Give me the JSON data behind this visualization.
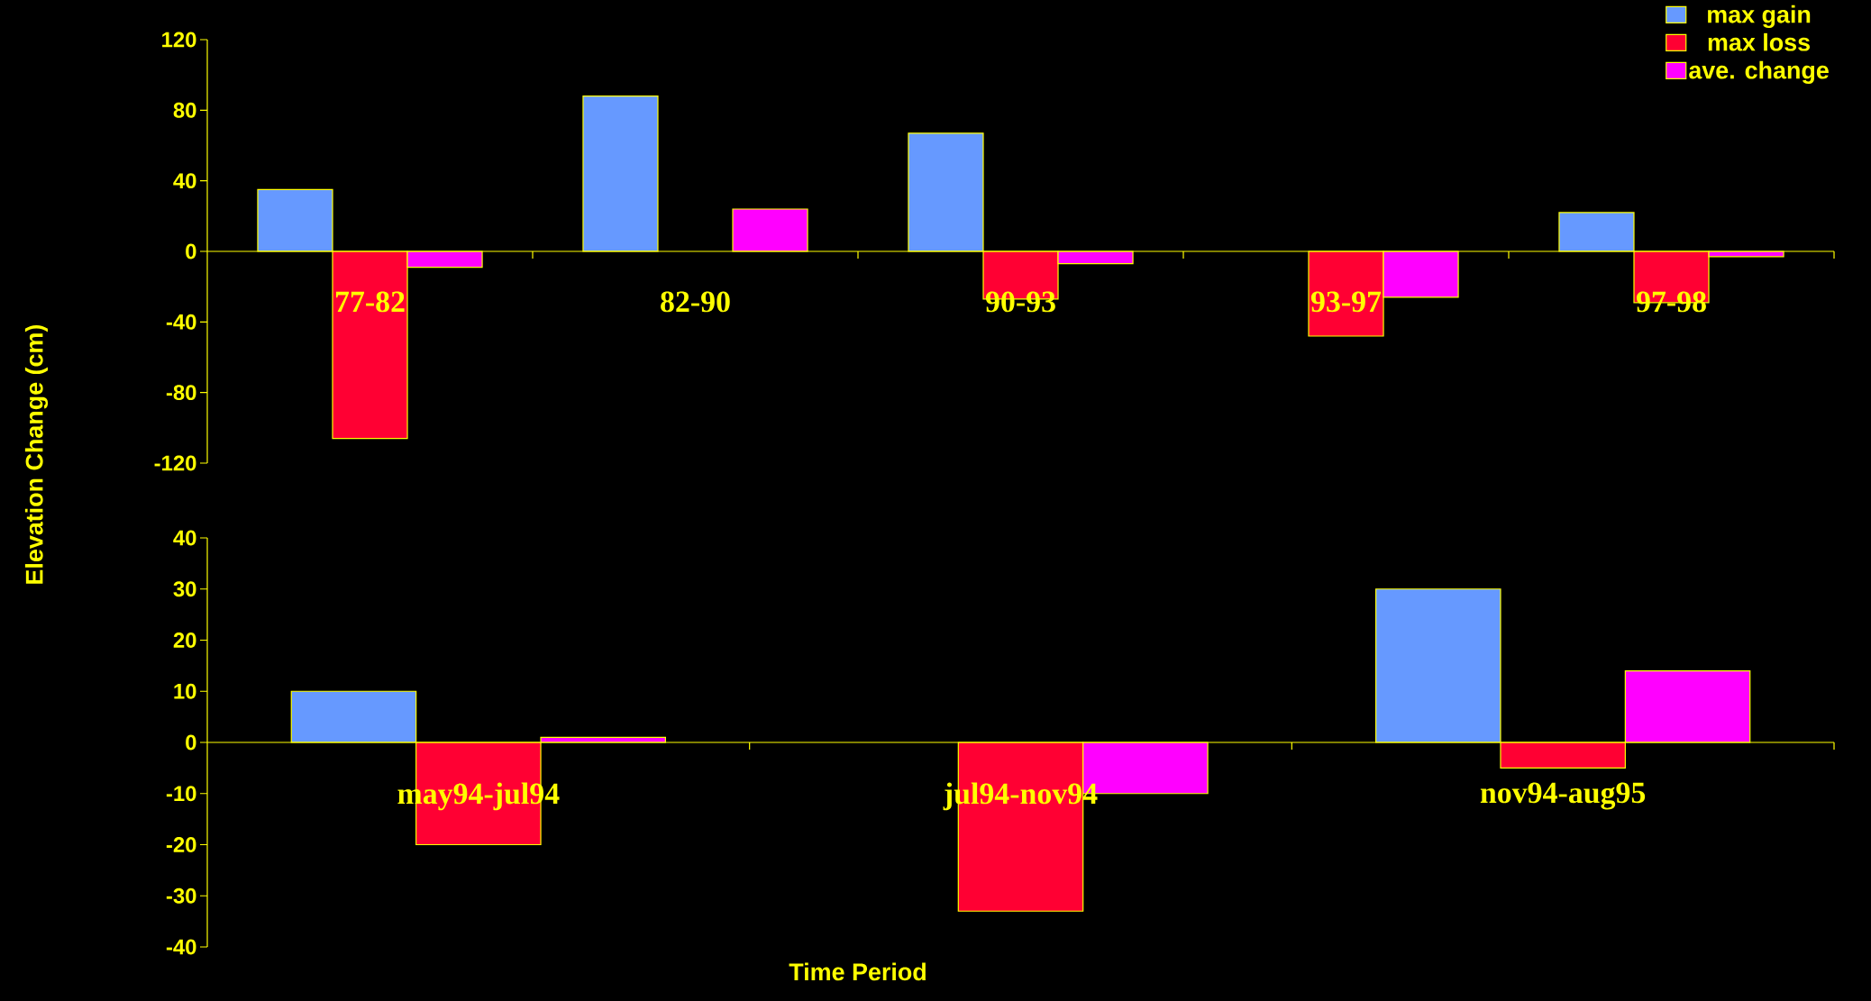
{
  "chart_data": [
    {
      "type": "bar",
      "ylabel": "Elevation Change (cm)",
      "categories": [
        "77-82",
        "82-90",
        "90-93",
        "93-97",
        "97-98"
      ],
      "series": [
        {
          "name": "max gain",
          "color": "#6699ff",
          "values": [
            35,
            88,
            67,
            null,
            22
          ]
        },
        {
          "name": "max loss",
          "color": "#ff0033",
          "values": [
            -106,
            null,
            -27,
            -48,
            -29
          ]
        },
        {
          "name": "ave. change",
          "color": "#ff00ff",
          "values": [
            -9,
            24,
            -7,
            -26,
            -3
          ]
        }
      ],
      "ylim": [
        -120,
        120
      ],
      "yticks": [
        -120,
        -80,
        -40,
        0,
        40,
        80,
        120
      ],
      "legend": "top right"
    },
    {
      "type": "bar",
      "xlabel": "Time Period",
      "categories": [
        "may94-jul94",
        "jul94-nov94",
        "nov94-aug95"
      ],
      "series": [
        {
          "color": "#6699ff",
          "values": [
            10,
            null,
            30
          ]
        },
        {
          "color": "#ff0033",
          "values": [
            -20,
            -33,
            -5
          ]
        },
        {
          "color": "#ff00ff",
          "values": [
            1,
            -10,
            14
          ]
        }
      ],
      "ylim": [
        -40,
        40
      ],
      "yticks": [
        -40,
        -30,
        -20,
        -10,
        0,
        10,
        20,
        30,
        40
      ]
    }
  ]
}
